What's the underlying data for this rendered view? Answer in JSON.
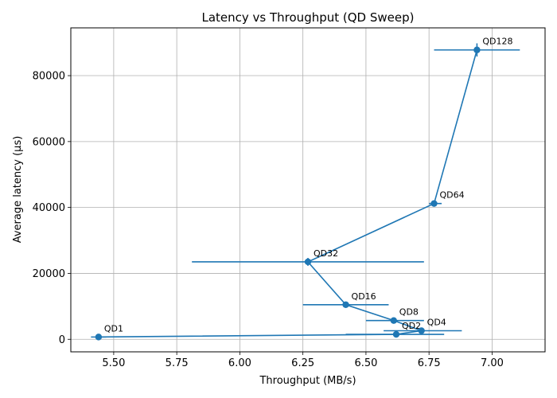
{
  "chart_data": {
    "type": "scatter",
    "title": "Latency vs Throughput (QD Sweep)",
    "xlabel": "Throughput (MB/s)",
    "ylabel": "Average latency (µs)",
    "xlim": [
      5.33,
      7.21
    ],
    "ylim": [
      -3800,
      94500
    ],
    "xticks": [
      5.5,
      5.75,
      6.0,
      6.25,
      6.5,
      6.75,
      7.0
    ],
    "xtick_labels": [
      "5.50",
      "5.75",
      "6.00",
      "6.25",
      "6.50",
      "6.75",
      "7.00"
    ],
    "yticks": [
      0,
      20000,
      40000,
      60000,
      80000
    ],
    "ytick_labels": [
      "0",
      "20000",
      "40000",
      "60000",
      "80000"
    ],
    "grid": true,
    "color": "#1f77b4",
    "series": [
      {
        "points": [
          {
            "label": "QD1",
            "x": 5.44,
            "y": 700,
            "xerr_low": 5.41,
            "xerr_high": 5.47,
            "yerr": 0
          },
          {
            "label": "QD2",
            "x": 6.62,
            "y": 1500,
            "xerr_low": 6.42,
            "xerr_high": 6.81,
            "yerr": 0
          },
          {
            "label": "QD4",
            "x": 6.72,
            "y": 2600,
            "xerr_low": 6.57,
            "xerr_high": 6.88,
            "yerr": 0
          },
          {
            "label": "QD8",
            "x": 6.61,
            "y": 5700,
            "xerr_low": 6.5,
            "xerr_high": 6.73,
            "yerr": 0
          },
          {
            "label": "QD16",
            "x": 6.42,
            "y": 10500,
            "xerr_low": 6.25,
            "xerr_high": 6.59,
            "yerr": 400
          },
          {
            "label": "QD32",
            "x": 6.27,
            "y": 23500,
            "xerr_low": 5.81,
            "xerr_high": 6.73,
            "yerr": 1200
          },
          {
            "label": "QD64",
            "x": 6.77,
            "y": 41200,
            "xerr_low": 6.75,
            "xerr_high": 6.8,
            "yerr": 600
          },
          {
            "label": "QD128",
            "x": 6.94,
            "y": 87800,
            "xerr_low": 6.77,
            "xerr_high": 7.11,
            "yerr": 2000
          }
        ]
      }
    ]
  }
}
